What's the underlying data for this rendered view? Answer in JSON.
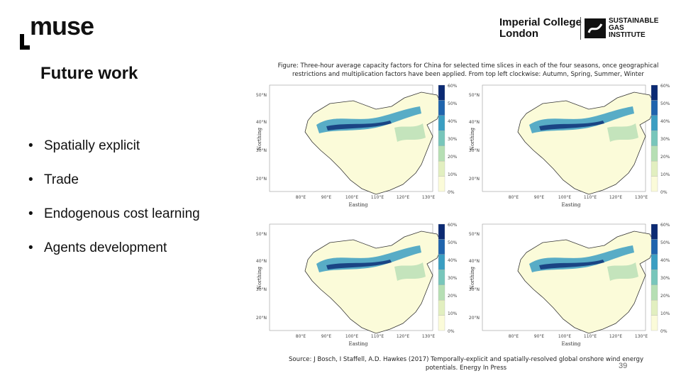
{
  "brand": {
    "muse": "muse",
    "imperial_line1": "Imperial College",
    "imperial_line2": "London",
    "sgi_line1": "SUSTAINABLE",
    "sgi_line2": "GAS",
    "sgi_line3": "INSTITUTE"
  },
  "slide": {
    "title": "Future work",
    "bullets": [
      "Spatially explicit",
      "Trade",
      "Endogenous cost learning",
      "Agents development"
    ],
    "caption": "Figure: Three-hour average capacity factors for China for selected time slices in each of the four seasons, once geographical restrictions and multiplication factors have been applied. From top left clockwise: Autumn, Spring, Summer, Winter",
    "source": "Source: J Bosch, I Staffell, A.D. Hawkes (2017) Temporally-explicit and spatially-resolved global onshore wind energy potentials. Energy In Press",
    "page_number": "39"
  },
  "maps": [
    {
      "lat_ticks": [
        "50°N",
        "40°N",
        "30°N",
        "20°N"
      ],
      "lon_ticks": [
        "80°E",
        "90°E",
        "100°E",
        "110°E",
        "120°E",
        "130°E"
      ],
      "ylabel": "Northing",
      "xlabel": "Easting",
      "legend_ticks": [
        "60%",
        "50%",
        "40%",
        "30%",
        "20%",
        "10%",
        "0%"
      ]
    },
    {
      "lat_ticks": [
        "50°N",
        "40°N",
        "30°N",
        "20°N"
      ],
      "lon_ticks": [
        "80°E",
        "90°E",
        "100°E",
        "110°E",
        "120°E",
        "130°E"
      ],
      "ylabel": "Northing",
      "xlabel": "Easting",
      "legend_ticks": [
        "60%",
        "50%",
        "40%",
        "30%",
        "20%",
        "10%",
        "0%"
      ]
    },
    {
      "lat_ticks": [
        "50°N",
        "40°N",
        "30°N",
        "20°N"
      ],
      "lon_ticks": [
        "80°E",
        "90°E",
        "100°E",
        "110°E",
        "120°E",
        "130°E"
      ],
      "ylabel": "Northing",
      "xlabel": "Easting",
      "legend_ticks": [
        "60%",
        "50%",
        "40%",
        "30%",
        "20%",
        "10%",
        "0%"
      ]
    },
    {
      "lat_ticks": [
        "50°N",
        "40°N",
        "30°N",
        "20°N"
      ],
      "lon_ticks": [
        "80°E",
        "90°E",
        "100°E",
        "110°E",
        "120°E",
        "130°E"
      ],
      "ylabel": "Northing",
      "xlabel": "Easting",
      "legend_ticks": [
        "60%",
        "50%",
        "40%",
        "30%",
        "20%",
        "10%",
        "0%"
      ]
    }
  ],
  "colors": {
    "scale": [
      "#fbfbd9",
      "#e2efc0",
      "#b6dfb4",
      "#78c6bb",
      "#3b9ec2",
      "#1f64ad",
      "#0b2a73"
    ]
  }
}
